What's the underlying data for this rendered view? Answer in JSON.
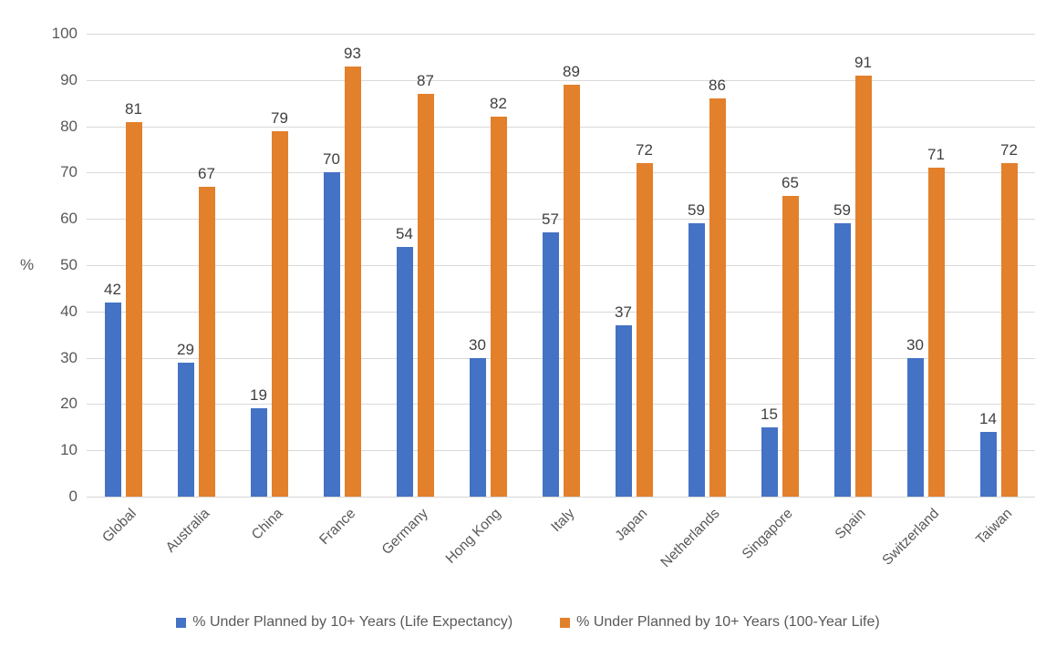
{
  "chart_data": {
    "type": "bar",
    "categories": [
      "Global",
      "Australia",
      "China",
      "France",
      "Germany",
      "Hong Kong",
      "Italy",
      "Japan",
      "Netherlands",
      "Singapore",
      "Spain",
      "Switzerland",
      "Taiwan"
    ],
    "series": [
      {
        "name": "% Under Planned by 10+ Years (Life Expectancy)",
        "color": "#4472C4",
        "values": [
          42,
          29,
          19,
          70,
          54,
          30,
          57,
          37,
          59,
          15,
          59,
          30,
          14
        ]
      },
      {
        "name": "% Under Planned by 10+ Years (100-Year Life)",
        "color": "#E2802C",
        "values": [
          81,
          67,
          79,
          93,
          87,
          82,
          89,
          72,
          86,
          65,
          91,
          71,
          72
        ]
      }
    ],
    "title": "",
    "xlabel": "",
    "ylabel": "%",
    "ylim": [
      0,
      100
    ],
    "ytick_step": 10,
    "yticks": [
      0,
      10,
      20,
      30,
      40,
      50,
      60,
      70,
      80,
      90,
      100
    ],
    "grid": true,
    "gridline_color": "#d9d9d9",
    "data_labels": true,
    "legend_position": "bottom"
  }
}
